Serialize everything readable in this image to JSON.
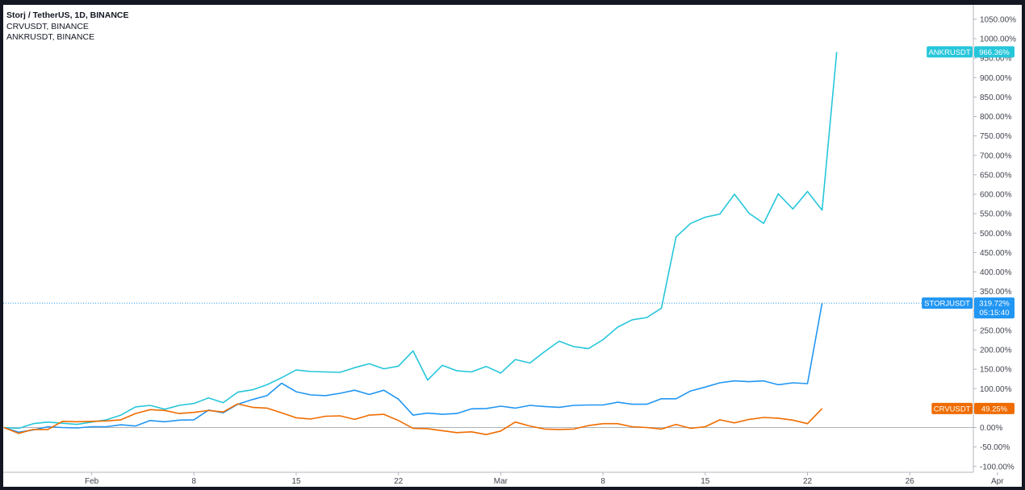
{
  "legend": {
    "line1": "Storj / TetherUS, 1D, BINANCE",
    "line2": "CRVUSDT, BINANCE",
    "line3": "ANKRUSDT, BINANCE"
  },
  "badges": {
    "ankr": {
      "label": "ANKRUSDT",
      "value": "966.36%",
      "color": "#26c6da"
    },
    "storj": {
      "label": "STORJUSDT",
      "value": "319.72%",
      "time": "05:15:40",
      "color": "#2196f3"
    },
    "crv": {
      "label": "CRVUSDT",
      "value": "49.25%",
      "color": "#ef6c00"
    }
  },
  "chart_data": {
    "type": "line",
    "title": "Storj / TetherUS, 1D, BINANCE",
    "x_start": "Jan 26",
    "x_range_days": [
      0,
      69
    ],
    "x_ticks": [
      {
        "day": 6,
        "label": "Feb"
      },
      {
        "day": 13,
        "label": "8"
      },
      {
        "day": 20,
        "label": "15"
      },
      {
        "day": 27,
        "label": "22"
      },
      {
        "day": 34,
        "label": "Mar"
      },
      {
        "day": 41,
        "label": "8"
      },
      {
        "day": 48,
        "label": "15"
      },
      {
        "day": 55,
        "label": "22"
      },
      {
        "day": 62,
        "label": "26"
      },
      {
        "day": 68,
        "label": "Apr"
      }
    ],
    "y_unit": "%",
    "ylim": [
      -110,
      1070
    ],
    "y_ticks": [
      -100,
      -50,
      0,
      50,
      100,
      150,
      200,
      250,
      300,
      350,
      400,
      450,
      500,
      550,
      600,
      650,
      700,
      750,
      800,
      850,
      900,
      950,
      1000,
      1050
    ],
    "series": [
      {
        "name": "ANKRUSDT",
        "color": "#26c6da",
        "values": [
          0,
          -2,
          10,
          14,
          11,
          8,
          14,
          20,
          32,
          53,
          57,
          47,
          57,
          62,
          76,
          64,
          91,
          97,
          110,
          128,
          148,
          144,
          143,
          142,
          154,
          164,
          151,
          158,
          197,
          122,
          160,
          146,
          143,
          157,
          140,
          175,
          166,
          195,
          222,
          208,
          203,
          226,
          258,
          277,
          283,
          307,
          490,
          525,
          541,
          549,
          600,
          551,
          525,
          601,
          562,
          607,
          559,
          966
        ]
      },
      {
        "name": "STORJUSDT",
        "color": "#2196f3",
        "values": [
          0,
          -12,
          -6,
          2,
          0,
          -1,
          2,
          2,
          7,
          4,
          18,
          15,
          19,
          20,
          45,
          38,
          60,
          72,
          82,
          114,
          92,
          84,
          82,
          88,
          96,
          85,
          96,
          73,
          32,
          37,
          34,
          36,
          48,
          49,
          55,
          50,
          57,
          54,
          52,
          57,
          58,
          58,
          65,
          60,
          60,
          74,
          74,
          94,
          104,
          115,
          120,
          118,
          120,
          110,
          115,
          113,
          320
        ]
      },
      {
        "name": "CRVUSDT",
        "color": "#ef6c00",
        "values": [
          0,
          -15,
          -5,
          -5,
          16,
          15,
          16,
          17,
          20,
          36,
          46,
          44,
          36,
          39,
          44,
          40,
          61,
          52,
          50,
          38,
          25,
          22,
          29,
          30,
          21,
          32,
          34,
          18,
          -2,
          -3,
          -8,
          -13,
          -11,
          -18,
          -9,
          14,
          4,
          -4,
          -5,
          -4,
          5,
          10,
          10,
          2,
          0,
          -4,
          8,
          -2,
          2,
          20,
          12,
          21,
          26,
          24,
          19,
          10,
          49
        ]
      }
    ]
  }
}
